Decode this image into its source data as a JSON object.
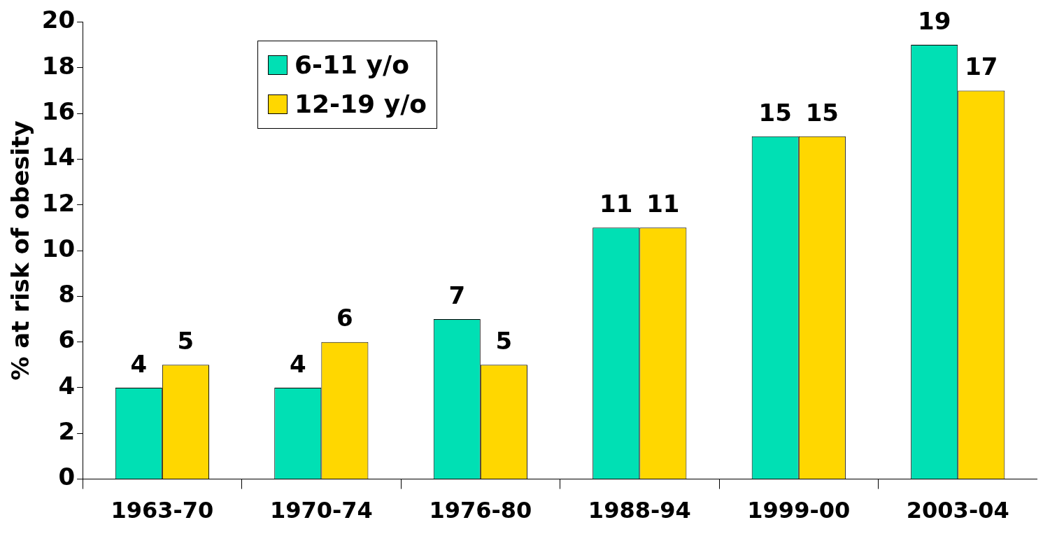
{
  "chart_data": {
    "type": "bar",
    "ylabel": "% at risk of obesity",
    "categories": [
      "1963-70",
      "1970-74",
      "1976-80",
      "1988-94",
      "1999-00",
      "2003-04"
    ],
    "series": [
      {
        "name": "6-11 y/o",
        "color": "#00e0b4",
        "values": [
          4,
          4,
          7,
          11,
          15,
          19
        ]
      },
      {
        "name": "12-19 y/o",
        "color": "#ffd700",
        "values": [
          5,
          6,
          5,
          11,
          15,
          17
        ]
      }
    ],
    "ylim": [
      0,
      20
    ],
    "yticks": [
      0,
      2,
      4,
      6,
      8,
      10,
      12,
      14,
      16,
      18,
      20
    ],
    "grid": false,
    "legend": "top left",
    "data_labels": true
  }
}
